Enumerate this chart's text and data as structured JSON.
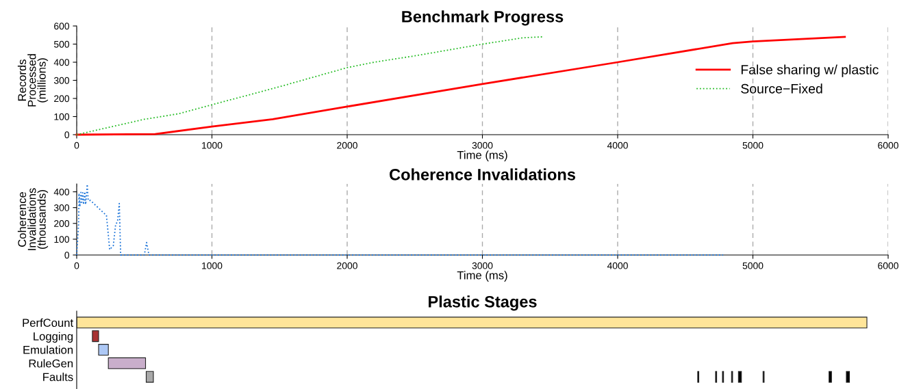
{
  "chart_data": [
    {
      "type": "line",
      "title": "Benchmark Progress",
      "xlabel": "Time (ms)",
      "ylabel": "Records\nProcessed\n(millions)",
      "xlim": [
        0,
        6000
      ],
      "xticks": [
        0,
        1000,
        2000,
        3000,
        4000,
        5000,
        6000
      ],
      "ylim": [
        0,
        600
      ],
      "yticks": [
        0,
        100,
        200,
        300,
        400,
        500,
        600
      ],
      "grid": "x",
      "legend": "right",
      "series": [
        {
          "name": "False sharing w/ plastic",
          "color": "#ff0000",
          "line_style": "solid",
          "x": [
            0,
            580,
            1000,
            1450,
            2000,
            3000,
            4000,
            4850,
            5000,
            5680
          ],
          "values": [
            0,
            3,
            45,
            85,
            155,
            280,
            400,
            505,
            515,
            540
          ]
        },
        {
          "name": "Source−Fixed",
          "color": "#22bb22",
          "line_style": "dotted",
          "x": [
            0,
            500,
            750,
            1000,
            1500,
            2000,
            2200,
            2500,
            3000,
            3300,
            3443
          ],
          "values": [
            0,
            85,
            115,
            165,
            265,
            370,
            400,
            435,
            500,
            535,
            540
          ]
        }
      ]
    },
    {
      "type": "line",
      "title": "Coherence Invalidations",
      "xlabel": "Time (ms)",
      "ylabel": "Coherence\nInvalidations\n(thousands)",
      "xlim": [
        0,
        6000
      ],
      "xticks": [
        0,
        1000,
        2000,
        3000,
        4000,
        5000,
        6000
      ],
      "ylim": [
        0,
        450
      ],
      "yticks": [
        0,
        100,
        200,
        300,
        400
      ],
      "grid": "x",
      "series": [
        {
          "color": "#1a73d9",
          "line_style": "dotted",
          "x": [
            0,
            14,
            17,
            24,
            31,
            37,
            44,
            51,
            59,
            66,
            71,
            78,
            85,
            102,
            220,
            244,
            271,
            288,
            302,
            315,
            325,
            500,
            517,
            534,
            4780
          ],
          "values": [
            0,
            193,
            390,
            307,
            396,
            333,
            394,
            320,
            400,
            320,
            371,
            447,
            345,
            345,
            250,
            34,
            60,
            193,
            212,
            326,
            0,
            0,
            79,
            0,
            0
          ]
        }
      ]
    },
    {
      "type": "bar",
      "title": "Plastic Stages",
      "orientation": "horizontal",
      "categories": [
        "PerfCount",
        "Logging",
        "Emulation",
        "RuleGen",
        "Faults"
      ],
      "xlim": [
        0,
        6000
      ],
      "tick_labels": "y",
      "series": [
        {
          "values": [
            5843,
            46,
            72,
            275,
            53
          ],
          "base": [
            0,
            116,
            162,
            234,
            514
          ],
          "colors": [
            "#ffe599",
            "#a83232",
            "#adc8f5",
            "#c9aecb",
            "#a9a9a9"
          ]
        },
        {
          "color": "#000000",
          "values": [
            null,
            null,
            null,
            null,
            8
          ],
          "base": [
            null,
            null,
            null,
            null,
            4592
          ]
        },
        {
          "color": "#000000",
          "values": [
            null,
            null,
            null,
            null,
            8
          ],
          "base": [
            null,
            null,
            null,
            null,
            4724
          ]
        },
        {
          "color": "#000000",
          "values": [
            null,
            null,
            null,
            null,
            8
          ],
          "base": [
            null,
            null,
            null,
            null,
            4775
          ]
        },
        {
          "color": "#000000",
          "values": [
            null,
            null,
            null,
            null,
            8
          ],
          "base": [
            null,
            null,
            null,
            null,
            4842
          ]
        },
        {
          "color": "#000000",
          "values": [
            null,
            null,
            null,
            null,
            22
          ],
          "base": [
            null,
            null,
            null,
            null,
            4893
          ]
        },
        {
          "color": "#000000",
          "values": [
            null,
            null,
            null,
            null,
            8
          ],
          "base": [
            null,
            null,
            null,
            null,
            5075
          ]
        },
        {
          "color": "#000000",
          "values": [
            null,
            null,
            null,
            null,
            18
          ],
          "base": [
            null,
            null,
            null,
            null,
            5563
          ]
        },
        {
          "color": "#000000",
          "values": [
            null,
            null,
            null,
            null,
            23
          ],
          "base": [
            null,
            null,
            null,
            null,
            5691
          ]
        }
      ]
    }
  ]
}
